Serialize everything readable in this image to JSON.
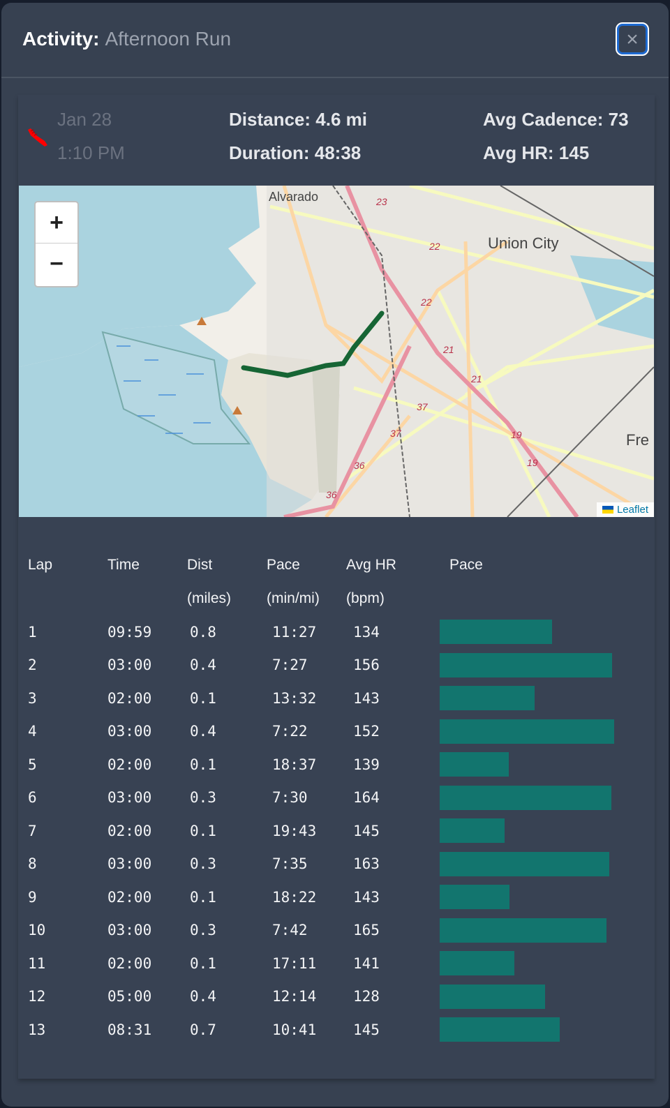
{
  "header": {
    "label": "Activity:",
    "activity_name": "Afternoon Run",
    "close_icon": "×"
  },
  "summary": {
    "date": "Jan 28",
    "time": "1:10 PM",
    "distance": "Distance: 4.6 mi",
    "duration": "Duration: 48:38",
    "avg_cadence": "Avg Cadence: 73",
    "avg_hr": "Avg HR: 145",
    "activity_icon": "running-shoe-icon",
    "icon_color": "#ff0000"
  },
  "map": {
    "zoom_in": "+",
    "zoom_out": "−",
    "attribution": "Leaflet",
    "labels": {
      "alvarado": "Alvarado",
      "union_city": "Union City",
      "fre": "Fre"
    },
    "route_color": "#166534",
    "road_numbers": [
      "23",
      "22",
      "22",
      "21",
      "21",
      "37",
      "37",
      "36",
      "36",
      "19",
      "19"
    ]
  },
  "laps": {
    "headers": [
      [
        "Lap",
        ""
      ],
      [
        "Time",
        ""
      ],
      [
        "Dist",
        "(miles)"
      ],
      [
        "Pace",
        "(min/mi)"
      ],
      [
        "Avg HR",
        "(bpm)"
      ],
      [
        "Pace",
        ""
      ]
    ],
    "bar_color": "#12756e",
    "rows": [
      {
        "lap": "1",
        "time": "09:59",
        "dist": "0.8",
        "pace": "11:27",
        "hr": "134"
      },
      {
        "lap": "2",
        "time": "03:00",
        "dist": "0.4",
        "pace": "7:27",
        "hr": "156"
      },
      {
        "lap": "3",
        "time": "02:00",
        "dist": "0.1",
        "pace": "13:32",
        "hr": "143"
      },
      {
        "lap": "4",
        "time": "03:00",
        "dist": "0.4",
        "pace": "7:22",
        "hr": "152"
      },
      {
        "lap": "5",
        "time": "02:00",
        "dist": "0.1",
        "pace": "18:37",
        "hr": "139"
      },
      {
        "lap": "6",
        "time": "03:00",
        "dist": "0.3",
        "pace": "7:30",
        "hr": "164"
      },
      {
        "lap": "7",
        "time": "02:00",
        "dist": "0.1",
        "pace": "19:43",
        "hr": "145"
      },
      {
        "lap": "8",
        "time": "03:00",
        "dist": "0.3",
        "pace": "7:35",
        "hr": "163"
      },
      {
        "lap": "9",
        "time": "02:00",
        "dist": "0.1",
        "pace": "18:22",
        "hr": "143"
      },
      {
        "lap": "10",
        "time": "03:00",
        "dist": "0.3",
        "pace": "7:42",
        "hr": "165"
      },
      {
        "lap": "11",
        "time": "02:00",
        "dist": "0.1",
        "pace": "17:11",
        "hr": "141"
      },
      {
        "lap": "12",
        "time": "05:00",
        "dist": "0.4",
        "pace": "12:14",
        "hr": "128"
      },
      {
        "lap": "13",
        "time": "08:31",
        "dist": "0.7",
        "pace": "10:41",
        "hr": "145"
      }
    ]
  }
}
